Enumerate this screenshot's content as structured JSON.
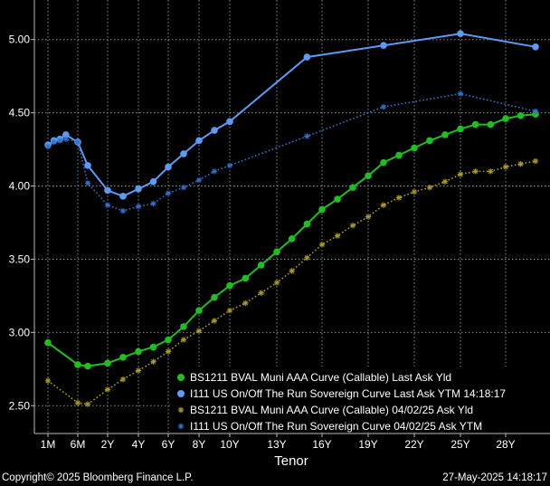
{
  "chart_data": {
    "type": "line",
    "xlabel": "Tenor",
    "ylabel": "",
    "x_ticks": [
      "1M",
      "6M",
      "2Y",
      "4Y",
      "6Y",
      "8Y",
      "10Y",
      "13Y",
      "16Y",
      "19Y",
      "22Y",
      "25Y",
      "28Y"
    ],
    "y_ticks": [
      "2.50",
      "3.00",
      "3.50",
      "4.00",
      "4.50",
      "5.00"
    ],
    "ylim": [
      2.31,
      5.27
    ],
    "legend_position": "bottom-right",
    "grid": true,
    "series": [
      {
        "name": "BS1211 BVAL Muni AAA Curve (Callable) Last Ask Yld",
        "color": "#1fbf1f",
        "style": "solid-dot",
        "points": [
          [
            "1M",
            2.93
          ],
          [
            "6M",
            2.78
          ],
          [
            "1Y",
            2.77
          ],
          [
            "2Y",
            2.79
          ],
          [
            "3Y",
            2.83
          ],
          [
            "4Y",
            2.87
          ],
          [
            "5Y",
            2.9
          ],
          [
            "6Y",
            2.95
          ],
          [
            "7Y",
            3.04
          ],
          [
            "8Y",
            3.15
          ],
          [
            "9Y",
            3.24
          ],
          [
            "10Y",
            3.32
          ],
          [
            "11Y",
            3.37
          ],
          [
            "12Y",
            3.46
          ],
          [
            "13Y",
            3.55
          ],
          [
            "14Y",
            3.64
          ],
          [
            "15Y",
            3.74
          ],
          [
            "16Y",
            3.84
          ],
          [
            "17Y",
            3.91
          ],
          [
            "18Y",
            3.99
          ],
          [
            "19Y",
            4.07
          ],
          [
            "20Y",
            4.16
          ],
          [
            "21Y",
            4.21
          ],
          [
            "22Y",
            4.26
          ],
          [
            "23Y",
            4.31
          ],
          [
            "24Y",
            4.35
          ],
          [
            "25Y",
            4.39
          ],
          [
            "26Y",
            4.42
          ],
          [
            "27Y",
            4.42
          ],
          [
            "28Y",
            4.46
          ],
          [
            "29Y",
            4.48
          ],
          [
            "30Y",
            4.49
          ]
        ]
      },
      {
        "name": "I111 US On/Off The Run Sovereign Curve Last Ask YTM 14:18:17",
        "color": "#5b9bf5",
        "style": "solid-dot",
        "points": [
          [
            "1M",
            4.28
          ],
          [
            "2M",
            4.31
          ],
          [
            "3M",
            4.32
          ],
          [
            "4M",
            4.35
          ],
          [
            "6M",
            4.3
          ],
          [
            "1Y",
            4.14
          ],
          [
            "2Y",
            3.97
          ],
          [
            "3Y",
            3.93
          ],
          [
            "4Y",
            3.98
          ],
          [
            "5Y",
            4.03
          ],
          [
            "6Y",
            4.13
          ],
          [
            "7Y",
            4.22
          ],
          [
            "8Y",
            4.31
          ],
          [
            "9Y",
            4.38
          ],
          [
            "10Y",
            4.44
          ],
          [
            "15Y",
            4.88
          ],
          [
            "20Y",
            4.96
          ],
          [
            "25Y",
            5.04
          ],
          [
            "30Y",
            4.95
          ]
        ]
      },
      {
        "name": "BS1211 BVAL Muni AAA Curve (Callable) 04/02/25 Ask Yld",
        "color": "#a89a22",
        "style": "dotted-star",
        "points": [
          [
            "1M",
            2.67
          ],
          [
            "6M",
            2.52
          ],
          [
            "1Y",
            2.51
          ],
          [
            "2Y",
            2.61
          ],
          [
            "3Y",
            2.68
          ],
          [
            "4Y",
            2.74
          ],
          [
            "5Y",
            2.8
          ],
          [
            "6Y",
            2.87
          ],
          [
            "7Y",
            2.95
          ],
          [
            "8Y",
            3.01
          ],
          [
            "9Y",
            3.08
          ],
          [
            "10Y",
            3.15
          ],
          [
            "11Y",
            3.2
          ],
          [
            "12Y",
            3.27
          ],
          [
            "13Y",
            3.34
          ],
          [
            "14Y",
            3.42
          ],
          [
            "15Y",
            3.51
          ],
          [
            "16Y",
            3.6
          ],
          [
            "17Y",
            3.66
          ],
          [
            "18Y",
            3.73
          ],
          [
            "19Y",
            3.79
          ],
          [
            "20Y",
            3.87
          ],
          [
            "21Y",
            3.92
          ],
          [
            "22Y",
            3.96
          ],
          [
            "23Y",
            3.99
          ],
          [
            "24Y",
            4.03
          ],
          [
            "25Y",
            4.08
          ],
          [
            "26Y",
            4.1
          ],
          [
            "27Y",
            4.1
          ],
          [
            "28Y",
            4.13
          ],
          [
            "29Y",
            4.15
          ],
          [
            "30Y",
            4.17
          ]
        ]
      },
      {
        "name": "I111 US On/Off The Run Sovereign Curve 04/02/25 Ask YTM",
        "color": "#2f72c8",
        "style": "dotted-star",
        "points": [
          [
            "1M",
            4.27
          ],
          [
            "2M",
            4.3
          ],
          [
            "3M",
            4.31
          ],
          [
            "4M",
            4.32
          ],
          [
            "6M",
            4.3
          ],
          [
            "1Y",
            4.02
          ],
          [
            "2Y",
            3.87
          ],
          [
            "3Y",
            3.83
          ],
          [
            "4Y",
            3.86
          ],
          [
            "5Y",
            3.88
          ],
          [
            "6Y",
            3.95
          ],
          [
            "7Y",
            3.99
          ],
          [
            "8Y",
            4.04
          ],
          [
            "9Y",
            4.1
          ],
          [
            "10Y",
            4.14
          ],
          [
            "15Y",
            4.34
          ],
          [
            "20Y",
            4.54
          ],
          [
            "25Y",
            4.63
          ],
          [
            "30Y",
            4.51
          ]
        ]
      }
    ]
  },
  "footer": {
    "copyright": "Copyright© 2025 Bloomberg Finance L.P.",
    "timestamp": "27-May-2025 14:18:17"
  }
}
